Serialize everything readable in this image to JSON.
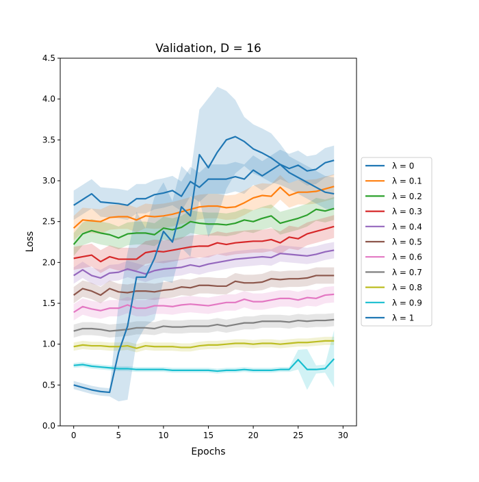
{
  "chart_data": {
    "type": "line",
    "title": "Validation, D = 16",
    "xlabel": "Epochs",
    "ylabel": "Loss",
    "xlim": [
      -1.5,
      31.5
    ],
    "ylim": [
      0,
      4.5
    ],
    "xticks": [
      0,
      5,
      10,
      15,
      20,
      25,
      30
    ],
    "xtick_labels": [
      "0",
      "5",
      "10",
      "15",
      "20",
      "25",
      "30"
    ],
    "yticks": [
      0,
      0.5,
      1,
      1.5,
      2,
      2.5,
      3,
      3.5,
      4,
      4.5
    ],
    "ytick_labels": [
      "0.0",
      "0.5",
      "1.0",
      "1.5",
      "2.0",
      "2.5",
      "3.0",
      "3.5",
      "4.0",
      "4.5"
    ],
    "grid": false,
    "legend_placement": "outside-right",
    "x": [
      0,
      1,
      2,
      3,
      4,
      5,
      6,
      7,
      8,
      9,
      10,
      11,
      12,
      13,
      14,
      15,
      16,
      17,
      18,
      19,
      20,
      21,
      22,
      23,
      24,
      25,
      26,
      27,
      28,
      29
    ],
    "series": [
      {
        "name": "λ = 0",
        "color": "#1f77b4",
        "std": 0.18,
        "values": [
          2.7,
          2.77,
          2.84,
          2.74,
          2.73,
          2.72,
          2.7,
          2.78,
          2.78,
          2.83,
          2.85,
          2.88,
          2.81,
          2.99,
          2.92,
          3.02,
          3.02,
          3.02,
          3.05,
          3.02,
          3.13,
          3.06,
          3.13,
          3.2,
          3.15,
          3.19,
          3.12,
          3.14,
          3.22,
          3.25
        ]
      },
      {
        "name": "λ = 0.1",
        "color": "#ff7f0e",
        "std": 0.15,
        "values": [
          2.42,
          2.52,
          2.51,
          2.5,
          2.55,
          2.56,
          2.56,
          2.52,
          2.57,
          2.56,
          2.57,
          2.59,
          2.62,
          2.65,
          2.68,
          2.69,
          2.69,
          2.67,
          2.68,
          2.73,
          2.79,
          2.82,
          2.81,
          2.92,
          2.82,
          2.86,
          2.86,
          2.87,
          2.9,
          2.93
        ]
      },
      {
        "name": "λ = 0.2",
        "color": "#2ca02c",
        "std": 0.14,
        "values": [
          2.22,
          2.35,
          2.39,
          2.36,
          2.34,
          2.3,
          2.35,
          2.36,
          2.36,
          2.34,
          2.42,
          2.4,
          2.43,
          2.5,
          2.48,
          2.47,
          2.47,
          2.46,
          2.48,
          2.52,
          2.5,
          2.54,
          2.57,
          2.48,
          2.51,
          2.54,
          2.58,
          2.65,
          2.63,
          2.66
        ]
      },
      {
        "name": "λ = 0.3",
        "color": "#d62728",
        "std": 0.14,
        "values": [
          2.05,
          2.07,
          2.09,
          2.01,
          2.07,
          2.04,
          2.04,
          2.04,
          2.12,
          2.14,
          2.13,
          2.15,
          2.17,
          2.19,
          2.2,
          2.2,
          2.24,
          2.22,
          2.24,
          2.25,
          2.26,
          2.26,
          2.28,
          2.24,
          2.31,
          2.29,
          2.35,
          2.38,
          2.41,
          2.44
        ]
      },
      {
        "name": "λ = 0.4",
        "color": "#9467bd",
        "std": 0.1,
        "values": [
          1.84,
          1.91,
          1.84,
          1.81,
          1.87,
          1.88,
          1.92,
          1.89,
          1.86,
          1.9,
          1.92,
          1.93,
          1.94,
          1.97,
          1.95,
          1.98,
          2.0,
          2.02,
          2.04,
          2.05,
          2.06,
          2.07,
          2.06,
          2.11,
          2.1,
          2.09,
          2.08,
          2.1,
          2.13,
          2.15
        ]
      },
      {
        "name": "λ = 0.5",
        "color": "#8c564b",
        "std": 0.1,
        "values": [
          1.6,
          1.68,
          1.65,
          1.6,
          1.68,
          1.64,
          1.63,
          1.65,
          1.65,
          1.64,
          1.66,
          1.67,
          1.7,
          1.69,
          1.72,
          1.72,
          1.71,
          1.71,
          1.77,
          1.75,
          1.75,
          1.76,
          1.8,
          1.79,
          1.8,
          1.8,
          1.81,
          1.84,
          1.84,
          1.84
        ]
      },
      {
        "name": "λ = 0.6",
        "color": "#e377c2",
        "std": 0.1,
        "values": [
          1.39,
          1.46,
          1.43,
          1.41,
          1.44,
          1.44,
          1.48,
          1.44,
          1.44,
          1.47,
          1.47,
          1.46,
          1.48,
          1.49,
          1.48,
          1.47,
          1.49,
          1.51,
          1.51,
          1.55,
          1.52,
          1.52,
          1.54,
          1.56,
          1.56,
          1.54,
          1.57,
          1.56,
          1.6,
          1.61
        ]
      },
      {
        "name": "λ = 0.7",
        "color": "#7f7f7f",
        "std": 0.08,
        "values": [
          1.16,
          1.19,
          1.19,
          1.18,
          1.16,
          1.17,
          1.18,
          1.2,
          1.2,
          1.19,
          1.22,
          1.21,
          1.21,
          1.22,
          1.22,
          1.22,
          1.24,
          1.22,
          1.24,
          1.26,
          1.26,
          1.28,
          1.28,
          1.28,
          1.27,
          1.29,
          1.28,
          1.29,
          1.29,
          1.3
        ]
      },
      {
        "name": "λ = 0.8",
        "color": "#bcbd22",
        "std": 0.05,
        "values": [
          0.97,
          0.99,
          0.98,
          0.98,
          0.97,
          0.97,
          0.98,
          0.95,
          0.98,
          0.97,
          0.97,
          0.97,
          0.96,
          0.96,
          0.98,
          0.99,
          0.99,
          1.0,
          1.01,
          1.01,
          1.0,
          1.01,
          1.01,
          1.0,
          1.01,
          1.02,
          1.02,
          1.03,
          1.04,
          1.04
        ]
      },
      {
        "name": "λ = 0.9",
        "color": "#17becf",
        "std": [
          0.03,
          0.03,
          0.03,
          0.03,
          0.03,
          0.03,
          0.03,
          0.03,
          0.03,
          0.03,
          0.03,
          0.03,
          0.03,
          0.03,
          0.03,
          0.03,
          0.03,
          0.03,
          0.03,
          0.03,
          0.03,
          0.03,
          0.03,
          0.03,
          0.03,
          0.12,
          0.25,
          0.05,
          0.05,
          0.35
        ],
        "values": [
          0.74,
          0.75,
          0.73,
          0.72,
          0.71,
          0.7,
          0.7,
          0.69,
          0.69,
          0.69,
          0.69,
          0.68,
          0.68,
          0.68,
          0.68,
          0.68,
          0.67,
          0.68,
          0.68,
          0.69,
          0.68,
          0.68,
          0.68,
          0.69,
          0.69,
          0.81,
          0.69,
          0.69,
          0.7,
          0.82
        ]
      },
      {
        "name": "λ = 1",
        "color": "#1f77b4",
        "std": [
          0.05,
          0.05,
          0.05,
          0.05,
          0.05,
          0.6,
          0.9,
          0.8,
          0.6,
          0.75,
          0.6,
          0.5,
          0.5,
          0.5,
          0.55,
          0.85,
          0.8,
          0.6,
          0.45,
          0.3,
          0.3,
          0.3,
          0.3,
          0.25,
          0.2,
          0.2,
          0.2,
          0.2,
          0.2,
          0.2
        ],
        "values": [
          0.5,
          0.47,
          0.44,
          0.42,
          0.41,
          0.9,
          1.22,
          1.82,
          1.82,
          2.05,
          2.38,
          2.25,
          2.68,
          2.57,
          3.32,
          3.16,
          3.35,
          3.5,
          3.54,
          3.48,
          3.39,
          3.34,
          3.28,
          3.2,
          3.1,
          3.04,
          2.98,
          2.92,
          2.86,
          2.84
        ]
      }
    ]
  }
}
